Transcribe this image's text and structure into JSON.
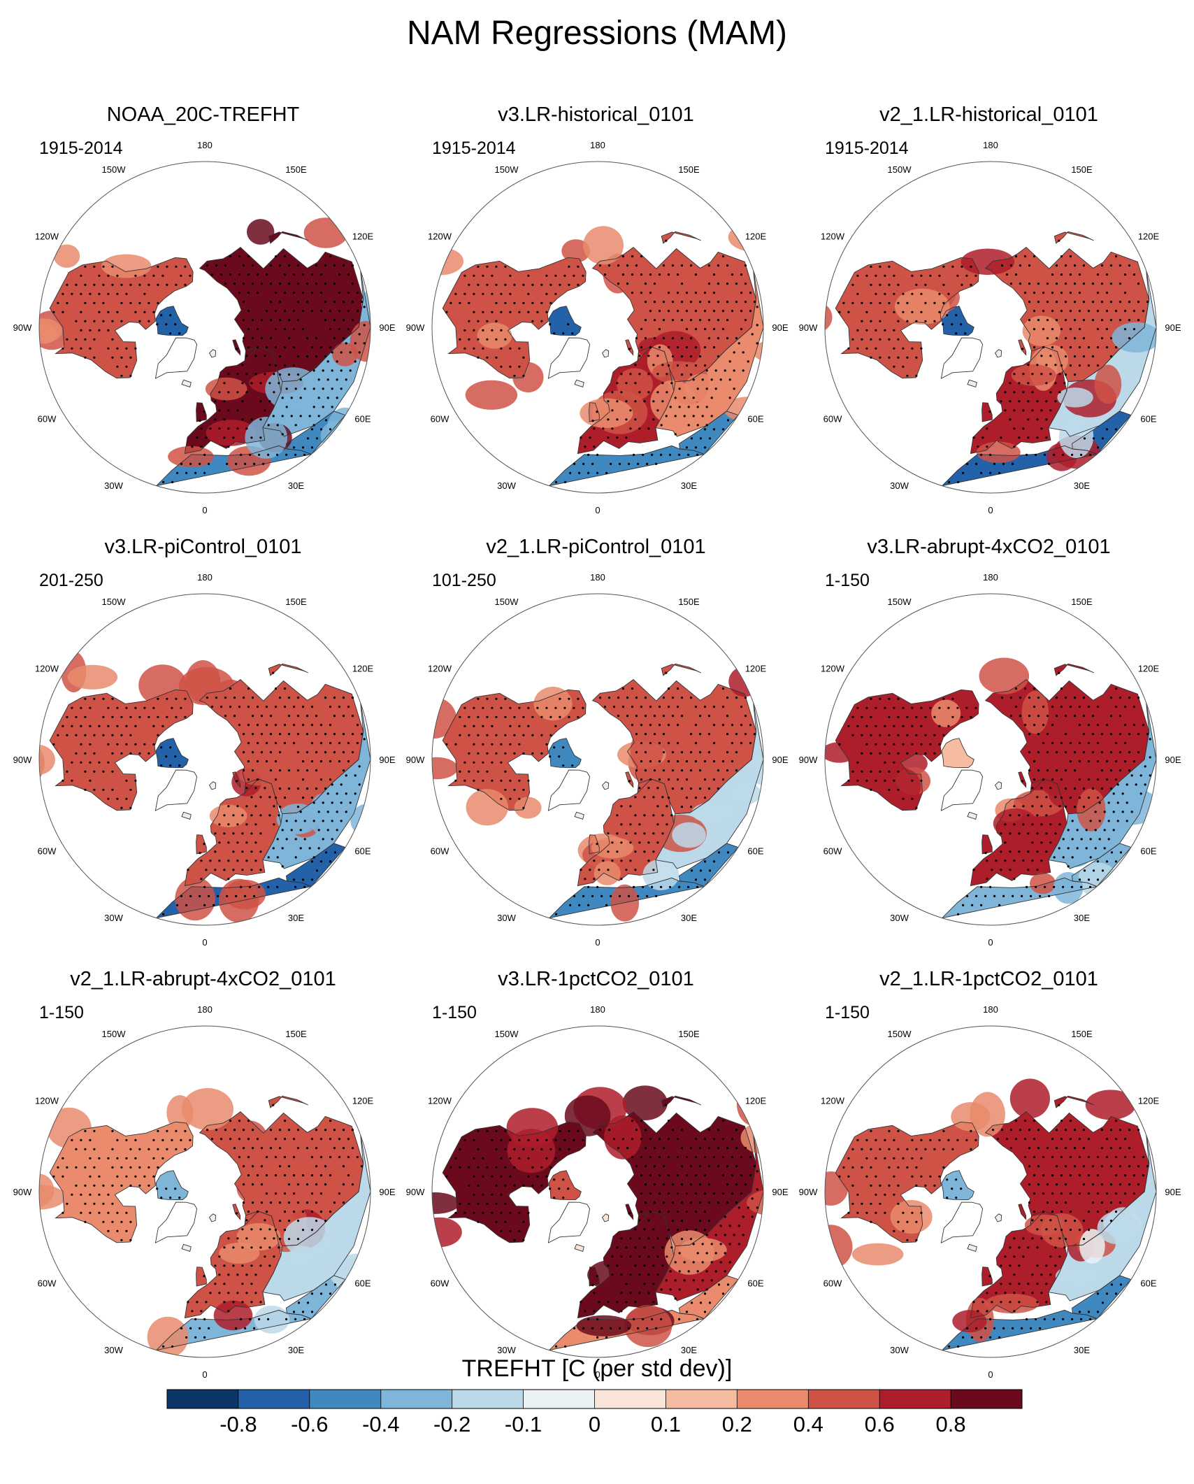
{
  "title": "NAM Regressions (MAM)",
  "panels": [
    {
      "title": "NOAA_20C-TREFHT",
      "period": "1915-2014",
      "pattern": {
        "na": 0.45,
        "ca": -0.7,
        "eu": 0.85,
        "si": 0.85,
        "ea": -0.35,
        "at": -0.45,
        "ns": -0.05
      }
    },
    {
      "title": "v3.LR-historical_0101",
      "period": "1915-2014",
      "pattern": {
        "na": 0.45,
        "ca": -0.7,
        "eu": 0.65,
        "si": 0.5,
        "ea": 0.35,
        "at": -0.5,
        "ns": -0.05
      }
    },
    {
      "title": "v2_1.LR-historical_0101",
      "period": "1915-2014",
      "pattern": {
        "na": 0.55,
        "ca": -0.75,
        "eu": 0.6,
        "si": 0.55,
        "ea": -0.2,
        "at": -0.7,
        "ns": -0.05
      }
    },
    {
      "title": "v3.LR-piControl_0101",
      "period": "201-250",
      "pattern": {
        "na": 0.5,
        "ca": -0.75,
        "eu": 0.5,
        "si": 0.55,
        "ea": -0.35,
        "at": -0.7,
        "ns": -0.05
      }
    },
    {
      "title": "v2_1.LR-piControl_0101",
      "period": "101-250",
      "pattern": {
        "na": 0.45,
        "ca": -0.6,
        "eu": 0.5,
        "si": 0.55,
        "ea": -0.15,
        "at": -0.5,
        "ns": -0.05
      }
    },
    {
      "title": "v3.LR-abrupt-4xCO2_0101",
      "period": "1-150",
      "pattern": {
        "na": 0.65,
        "ca": 0.15,
        "eu": 0.6,
        "si": 0.75,
        "ea": -0.3,
        "at": -0.3,
        "ns": -0.05
      }
    },
    {
      "title": "v2_1.LR-abrupt-4xCO2_0101",
      "period": "1-150",
      "pattern": {
        "na": 0.35,
        "ca": -0.3,
        "eu": 0.55,
        "si": 0.5,
        "ea": -0.15,
        "at": -0.35,
        "ns": -0.05
      }
    },
    {
      "title": "v3.LR-1pctCO2_0101",
      "period": "1-150",
      "pattern": {
        "na": 0.9,
        "ca": 0.45,
        "eu": 0.9,
        "si": 0.9,
        "ea": 0.6,
        "at": 0.35,
        "ns": 0.0
      }
    },
    {
      "title": "v2_1.LR-1pctCO2_0101",
      "period": "1-150",
      "pattern": {
        "na": 0.5,
        "ca": -0.4,
        "eu": 0.65,
        "si": 0.6,
        "ea": -0.15,
        "at": -0.5,
        "ns": -0.05
      }
    }
  ],
  "longitude_labels": [
    "180",
    "150E",
    "120E",
    "90E",
    "60E",
    "30E",
    "0",
    "30W",
    "60W",
    "90W",
    "120W",
    "150W"
  ],
  "colorbar": {
    "title": "TREFHT [C (per std dev)]",
    "tick_labels": [
      "-0.8",
      "-0.6",
      "-0.4",
      "-0.2",
      "-0.1",
      "0",
      "0.1",
      "0.2",
      "0.4",
      "0.6",
      "0.8"
    ],
    "levels": [
      -1.0,
      -0.8,
      -0.6,
      -0.4,
      -0.2,
      -0.1,
      0,
      0.1,
      0.2,
      0.4,
      0.6,
      0.8,
      1.0
    ],
    "colors": [
      "#0b3566",
      "#2361a8",
      "#4089c0",
      "#7fb5d8",
      "#bcd9ea",
      "#e9f1f5",
      "#f8e4d8",
      "#f6bca2",
      "#e98b6c",
      "#cf5246",
      "#ae1d2a",
      "#6a0a1c"
    ]
  }
}
